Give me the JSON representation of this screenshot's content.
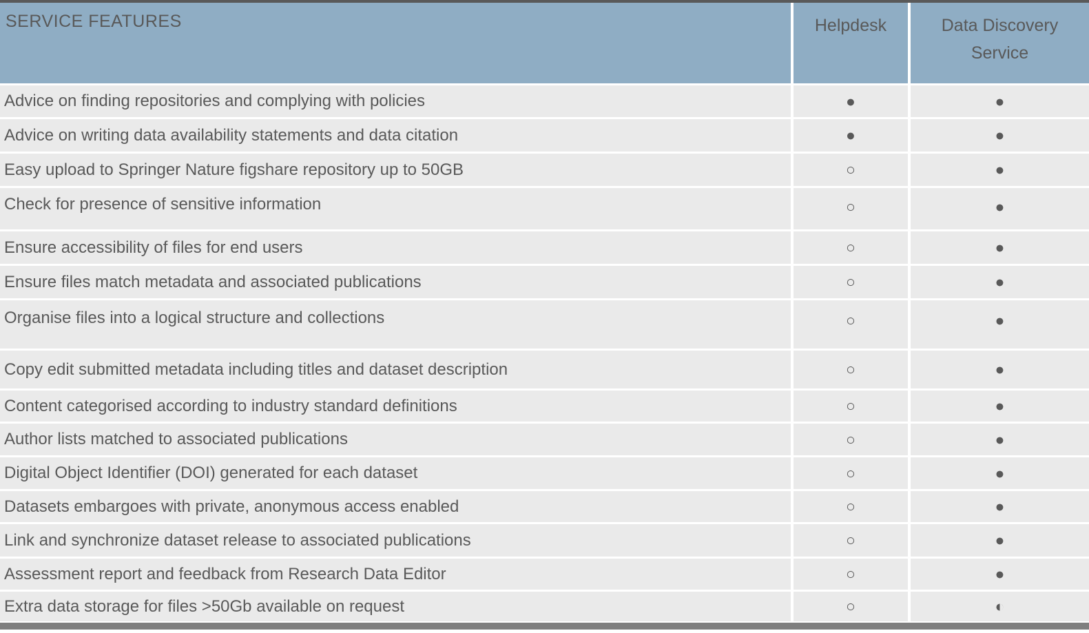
{
  "header": {
    "feature_column_label": "SERVICE FEATURES",
    "helpdesk_label": "Helpdesk",
    "data_discovery_label": "Data Discovery Service"
  },
  "symbols_legend": {
    "filled": "●",
    "open": "○",
    "half": "◐"
  },
  "rows": [
    {
      "feature": "Advice on finding repositories and complying with policies",
      "helpdesk": {
        "state": "filled",
        "glyph": "●"
      },
      "data_discovery": {
        "state": "filled",
        "glyph": "●"
      }
    },
    {
      "feature": "Advice on writing data availability statements and data citation",
      "helpdesk": {
        "state": "filled",
        "glyph": "●"
      },
      "data_discovery": {
        "state": "filled",
        "glyph": "●"
      }
    },
    {
      "feature": "Easy upload to Springer Nature figshare repository up to 50GB",
      "helpdesk": {
        "state": "open",
        "glyph": "○"
      },
      "data_discovery": {
        "state": "filled",
        "glyph": "●"
      }
    },
    {
      "feature": "Check for presence of sensitive information",
      "helpdesk": {
        "state": "open",
        "glyph": "○"
      },
      "data_discovery": {
        "state": "filled",
        "glyph": "●"
      }
    },
    {
      "feature": "Ensure accessibility of files for end users",
      "helpdesk": {
        "state": "open",
        "glyph": "○"
      },
      "data_discovery": {
        "state": "filled",
        "glyph": "●"
      }
    },
    {
      "feature": "Ensure files match metadata and associated publications",
      "helpdesk": {
        "state": "open",
        "glyph": "○"
      },
      "data_discovery": {
        "state": "filled",
        "glyph": "●"
      }
    },
    {
      "feature": "Organise files into a logical structure and collections",
      "helpdesk": {
        "state": "open",
        "glyph": "○"
      },
      "data_discovery": {
        "state": "filled",
        "glyph": "●"
      }
    },
    {
      "feature": "Copy edit submitted metadata including titles and dataset description",
      "helpdesk": {
        "state": "open",
        "glyph": "○"
      },
      "data_discovery": {
        "state": "filled",
        "glyph": "●"
      }
    },
    {
      "feature": "Content categorised according to industry standard definitions",
      "helpdesk": {
        "state": "open",
        "glyph": "○"
      },
      "data_discovery": {
        "state": "filled",
        "glyph": "●"
      }
    },
    {
      "feature": "Author lists matched to associated publications",
      "helpdesk": {
        "state": "open",
        "glyph": "○"
      },
      "data_discovery": {
        "state": "filled",
        "glyph": "●"
      }
    },
    {
      "feature": "Digital Object Identifier (DOI) generated for each dataset",
      "helpdesk": {
        "state": "open",
        "glyph": "○"
      },
      "data_discovery": {
        "state": "filled",
        "glyph": "●"
      }
    },
    {
      "feature": "Datasets embargoes with private, anonymous access enabled",
      "helpdesk": {
        "state": "open",
        "glyph": "○"
      },
      "data_discovery": {
        "state": "filled",
        "glyph": "●"
      }
    },
    {
      "feature": "Link and synchronize dataset release to associated publications",
      "helpdesk": {
        "state": "open",
        "glyph": "○"
      },
      "data_discovery": {
        "state": "filled",
        "glyph": "●"
      }
    },
    {
      "feature": "Assessment report and feedback from Research Data Editor",
      "helpdesk": {
        "state": "open",
        "glyph": "○"
      },
      "data_discovery": {
        "state": "filled",
        "glyph": "●"
      }
    },
    {
      "feature": "Extra data storage for files >50Gb available on request",
      "helpdesk": {
        "state": "open",
        "glyph": "○"
      },
      "data_discovery": {
        "state": "half",
        "glyph": "◐"
      }
    }
  ],
  "colors": {
    "header_bg": "#8fadc4",
    "row_bg": "#eaeaea",
    "text": "#595959",
    "top_border": "#595959",
    "bottom_bar": "#7f7f7f",
    "separator": "#ffffff"
  }
}
